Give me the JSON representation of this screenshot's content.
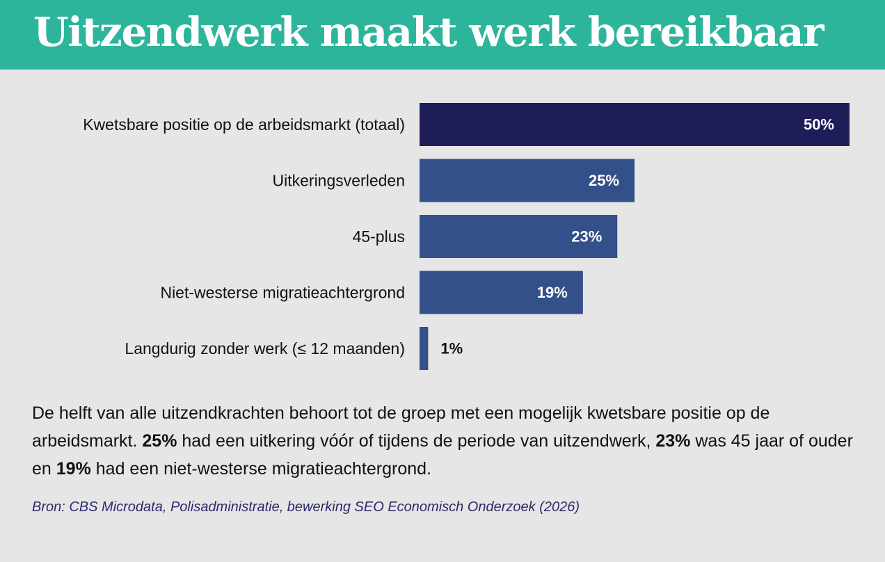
{
  "title": "Uitzendwerk maakt werk bereikbaar",
  "chart_data": {
    "type": "bar",
    "orientation": "horizontal",
    "categories": [
      "Kwetsbare positie op de arbeidsmarkt (totaal)",
      "Uitkeringsverleden",
      "45-plus",
      "Niet-westerse migratieachtergrond",
      "Langdurig zonder werk (≤ 12 maanden)"
    ],
    "values": [
      50,
      25,
      23,
      19,
      1
    ],
    "value_labels": [
      "50%",
      "25%",
      "23%",
      "19%",
      "1%"
    ],
    "unit": "%",
    "xlim": [
      0,
      50
    ],
    "colors": [
      "#1f1d58",
      "#34508a",
      "#34508a",
      "#34508a",
      "#34508a"
    ],
    "grid": false,
    "legend": "none"
  },
  "description": {
    "part1": "De helft van alle uitzendkrachten behoort tot de groep met een mogelijk kwetsbare positie op de arbeidsmarkt. ",
    "bold1": "25%",
    "part2": " had een uitkering vóór of tijdens de periode van uitzendwerk, ",
    "bold2": "23%",
    "part3": " was 45 jaar of ouder en ",
    "bold3": "19%",
    "part4": " had een niet-westerse migratieachtergrond."
  },
  "source": "Bron: CBS Microdata, Polisadministratie, bewerking SEO Economisch Onderzoek (2026)"
}
